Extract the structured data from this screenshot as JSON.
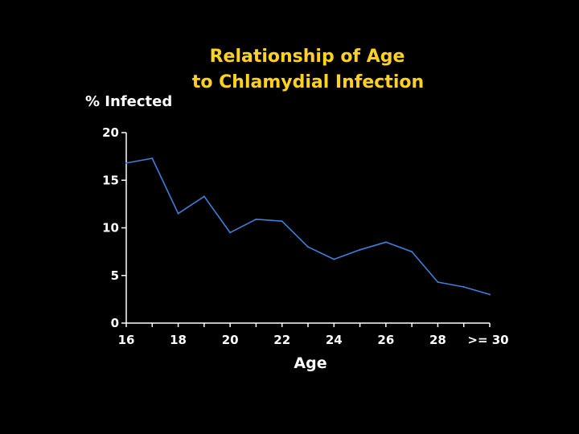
{
  "colors": {
    "background": "#000000",
    "title": "#ffd21e",
    "text": "#ffffff",
    "axis": "#ffffff",
    "line": "#3f7fd8"
  },
  "chart_data": {
    "type": "line",
    "title_line1": "Relationship of Age",
    "title_line2": "to Chlamydial Infection",
    "ylabel": "% Infected",
    "xlabel": "Age",
    "x": [
      16,
      17,
      18,
      19,
      20,
      21,
      22,
      23,
      24,
      25,
      26,
      27,
      28,
      29,
      30
    ],
    "x_tick_values": [
      16,
      18,
      20,
      22,
      24,
      26,
      28,
      30
    ],
    "x_tick_labels": [
      "16",
      "18",
      "20",
      "22",
      "24",
      "26",
      "28",
      ">= 30"
    ],
    "xlim": [
      16,
      30
    ],
    "y": [
      16.8,
      17.3,
      11.5,
      13.3,
      9.5,
      10.9,
      10.7,
      8.0,
      6.7,
      7.7,
      8.5,
      7.5,
      4.3,
      3.8,
      3.0
    ],
    "y_ticks": [
      0,
      5,
      10,
      15,
      20
    ],
    "ylim": [
      0,
      20
    ],
    "grid": false,
    "legend": "none"
  }
}
